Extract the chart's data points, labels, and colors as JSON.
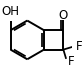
{
  "bg_color": "#ffffff",
  "line_color": "#000000",
  "bond_width": 1.4,
  "font_size": 8.5,
  "fig_width": 0.82,
  "fig_height": 0.83,
  "dpi": 100,
  "atoms": {
    "OH_label": "OH",
    "O_label": "O",
    "F1_label": "F",
    "F2_label": "F"
  }
}
